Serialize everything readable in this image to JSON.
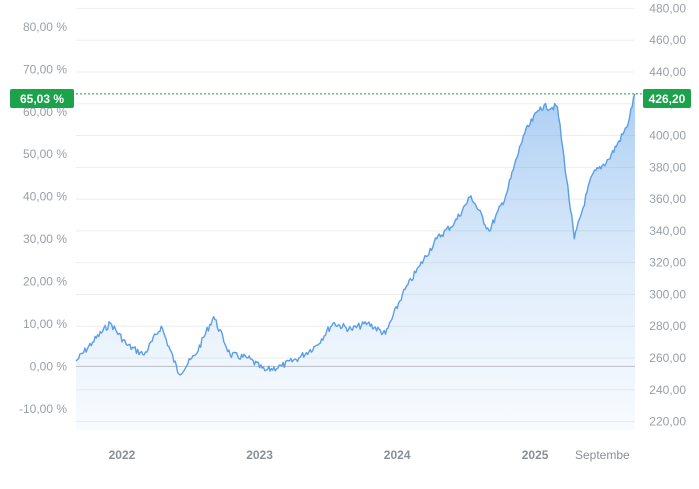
{
  "chart_data": {
    "type": "area",
    "x_ticks": [
      "2022",
      "2023",
      "2024",
      "2025",
      "Septembe"
    ],
    "y_left_ticks": [
      "-10,00 %",
      "0,00 %",
      "10,00 %",
      "20,00 %",
      "30,00 %",
      "40,00 %",
      "50,00 %",
      "60,00 %",
      "70,00 %",
      "80,00 %"
    ],
    "y_right_ticks": [
      "220,00",
      "240,00",
      "260,00",
      "280,00",
      "300,00",
      "320,00",
      "340,00",
      "360,00",
      "380,00",
      "400,00",
      "420,00",
      "440,00",
      "460,00",
      "480,00"
    ],
    "y_left_range": [
      -15,
      84
    ],
    "y_right_range": [
      214.7,
      479
    ],
    "current_percent_label": "65,03 %",
    "current_price_label": "426,20",
    "accent_color": "#1aa34a",
    "line_color": "#5a9ee8",
    "series": [
      {
        "x": [
          "2021-09-01",
          "2021-10-15",
          "2021-12-01",
          "2022-01-15",
          "2022-03-01",
          "2022-04-15",
          "2022-06-01",
          "2022-07-15",
          "2022-09-01",
          "2022-10-15",
          "2022-12-01",
          "2023-01-15",
          "2023-03-01",
          "2023-04-15",
          "2023-06-01",
          "2023-07-15",
          "2023-09-01",
          "2023-10-15",
          "2023-12-01",
          "2024-01-15",
          "2024-03-01",
          "2024-04-15",
          "2024-06-01",
          "2024-07-15",
          "2024-09-01",
          "2024-10-15",
          "2024-12-01",
          "2025-01-15",
          "2025-03-01",
          "2025-04-15",
          "2025-06-01",
          "2025-07-15",
          "2025-09-01",
          "2025-09-23"
        ],
        "y": [
          258,
          270,
          282,
          268,
          262,
          280,
          250,
          262,
          286,
          262,
          260,
          252,
          255,
          260,
          268,
          282,
          278,
          282,
          275,
          300,
          318,
          335,
          345,
          362,
          340,
          362,
          400,
          418,
          418,
          335,
          375,
          385,
          405,
          426.2
        ]
      }
    ]
  }
}
